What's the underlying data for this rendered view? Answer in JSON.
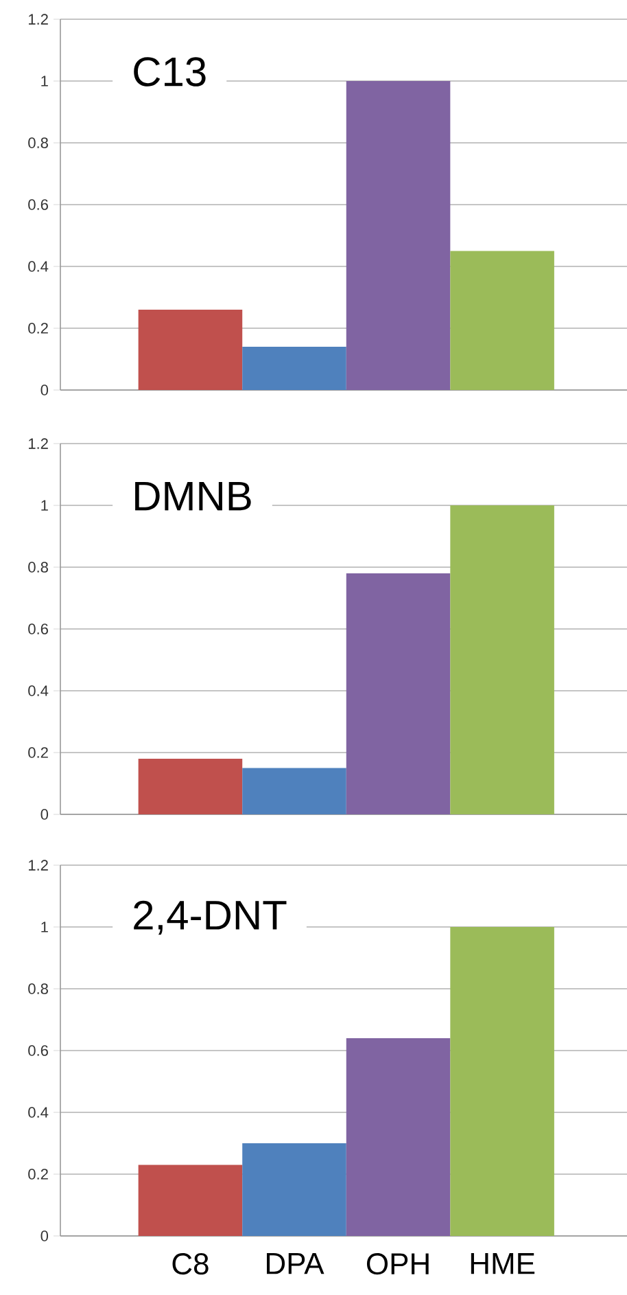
{
  "chart_data": [
    {
      "type": "bar",
      "title": "C13",
      "categories": [
        null,
        null,
        null,
        null
      ],
      "values": [
        0.26,
        0.14,
        1,
        0.45
      ],
      "colors": [
        "#c0504d",
        "#4f81bd",
        "#8064a2",
        "#9bbb59"
      ],
      "ylim": [
        0,
        1.2
      ],
      "yticks": [
        0,
        0.2,
        0.4,
        0.6,
        0.8,
        1,
        1.2
      ],
      "grid": "y",
      "tick_labels": "y"
    },
    {
      "type": "bar",
      "title": "DMNB",
      "categories": [
        null,
        null,
        null,
        null
      ],
      "values": [
        0.18,
        0.15,
        0.78,
        1
      ],
      "colors": [
        "#c0504d",
        "#4f81bd",
        "#8064a2",
        "#9bbb59"
      ],
      "ylim": [
        0,
        1.2
      ],
      "yticks": [
        0,
        0.2,
        0.4,
        0.6,
        0.8,
        1,
        1.2
      ],
      "grid": "y",
      "tick_labels": "y"
    },
    {
      "type": "bar",
      "title": "2,4-DNT",
      "categories": [
        "C8",
        "DPA",
        "OPH",
        "HME"
      ],
      "values": [
        0.23,
        0.3,
        0.64,
        1
      ],
      "colors": [
        "#c0504d",
        "#4f81bd",
        "#8064a2",
        "#9bbb59"
      ],
      "ylim": [
        0,
        1.2
      ],
      "yticks": [
        0,
        0.2,
        0.4,
        0.6,
        0.8,
        1,
        1.2
      ],
      "grid": "y"
    }
  ]
}
